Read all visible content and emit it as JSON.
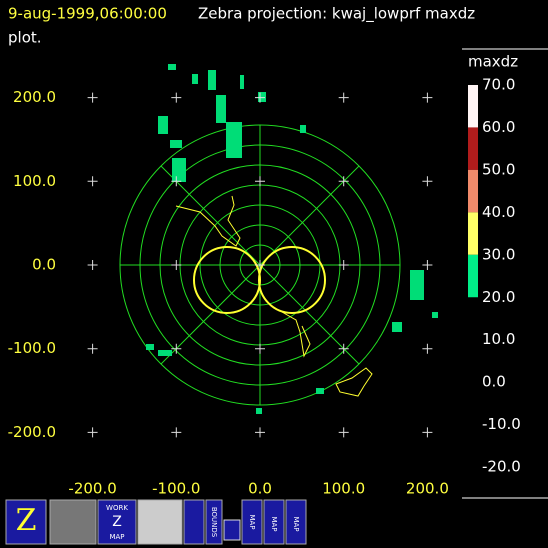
{
  "header": {
    "time": "9-aug-1999,06:00:00",
    "title": "Zebra projection: kwaj_lowprf maxdz",
    "title_cont": "plot."
  },
  "plot": {
    "xticks": [
      {
        "value": -200,
        "label": "-200.0"
      },
      {
        "value": -100,
        "label": "-100.0"
      },
      {
        "value": 0,
        "label": "0.0"
      },
      {
        "value": 100,
        "label": "100.0"
      },
      {
        "value": 200,
        "label": "200.0"
      }
    ],
    "yticks": [
      {
        "value": 200,
        "label": "200.0"
      },
      {
        "value": 100,
        "label": "100.0"
      },
      {
        "value": 0,
        "label": "0.0"
      },
      {
        "value": -100,
        "label": "-100.0"
      },
      {
        "value": -200,
        "label": "-200.0"
      }
    ]
  },
  "colorbar": {
    "label": "maxdz",
    "ticks": [
      {
        "value": 70,
        "label": "70.0"
      },
      {
        "value": 60,
        "label": "60.0"
      },
      {
        "value": 50,
        "label": "50.0"
      },
      {
        "value": 40,
        "label": "40.0"
      },
      {
        "value": 30,
        "label": "30.0"
      },
      {
        "value": 20,
        "label": "20.0"
      },
      {
        "value": 10,
        "label": "10.0"
      },
      {
        "value": 0,
        "label": "0.0"
      },
      {
        "value": -10,
        "label": "-10.0"
      },
      {
        "value": -20,
        "label": "-20.0"
      }
    ],
    "colors": [
      "#fff4f4",
      "#b01c1c",
      "#f08a6a",
      "#ffff66",
      "#00ee88"
    ]
  },
  "toolbar": {
    "work": "WORK",
    "z": "Z",
    "map": "MAP",
    "bounds": "BOUNDS",
    "map2": "MAP",
    "map3": "MAP",
    "map4": "MAP"
  }
}
